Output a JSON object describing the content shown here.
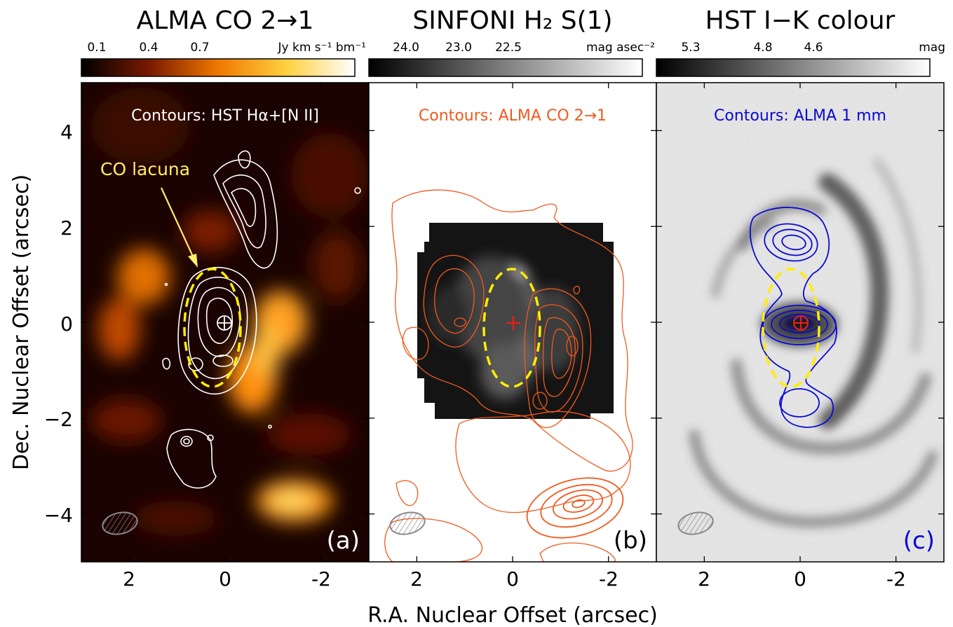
{
  "figure": {
    "xlabel": "R.A. Nuclear Offset (arcsec)",
    "ylabel": "Dec. Nuclear Offset (arcsec)"
  },
  "colors": {
    "white_contours": "#ffffff",
    "orange_contours": "#f05a1e",
    "blue_contours": "#0a0ad2",
    "lacuna_ellipse": "#ffee00",
    "lacuna_label": "#ffee66",
    "nucleus_cross": "#e0221a"
  },
  "chart_data": [
    {
      "type": "heatmap",
      "panel_label": "(a)",
      "title": "ALMA CO 2→1",
      "colorbar": {
        "colormap": "afmhot",
        "ticks": [
          "0.1",
          "0.4",
          "0.7"
        ],
        "unit": "Jy km s⁻¹ bm⁻¹"
      },
      "contour_label": "Contours: HST Hα+[N II]",
      "contour_color": "white",
      "annotation": "CO lacuna",
      "xlim": [
        3,
        -3
      ],
      "ylim": [
        -5,
        5
      ],
      "xticks": [
        "2",
        "0",
        "-2"
      ],
      "yticks": [
        "4",
        "2",
        "0",
        "−2",
        "−4"
      ],
      "nucleus": [
        0,
        0
      ],
      "lacuna_ellipse": {
        "center": [
          0.2,
          -0.2
        ],
        "semi_major": 1.2,
        "semi_minor": 0.55
      }
    },
    {
      "type": "heatmap",
      "panel_label": "(b)",
      "title": "SINFONI H₂ S(1)",
      "colorbar": {
        "colormap": "gray",
        "ticks": [
          "24.0",
          "23.0",
          "22.5"
        ],
        "unit": "mag asec⁻²"
      },
      "contour_label": "Contours: ALMA CO 2→1",
      "contour_color": "orange",
      "xlim": [
        3,
        -3
      ],
      "ylim": [
        -5,
        5
      ],
      "xticks": [
        "2",
        "0",
        "-2"
      ],
      "nucleus": [
        0,
        0
      ],
      "lacuna_ellipse": {
        "center": [
          0.2,
          -0.2
        ],
        "semi_major": 1.2,
        "semi_minor": 0.55
      }
    },
    {
      "type": "heatmap",
      "panel_label": "(c)",
      "title": "HST I−K colour",
      "colorbar": {
        "colormap": "gray",
        "ticks": [
          "5.3",
          "4.8",
          "4.6"
        ],
        "unit": "mag"
      },
      "contour_label": "Contours: ALMA 1 mm",
      "contour_color": "blue",
      "xlim": [
        3,
        -3
      ],
      "ylim": [
        -5,
        5
      ],
      "xticks": [
        "2",
        "0",
        "-2"
      ],
      "nucleus": [
        0,
        0
      ],
      "lacuna_ellipse": {
        "center": [
          -0.1,
          -0.2
        ],
        "semi_major": 1.2,
        "semi_minor": 0.55
      }
    }
  ]
}
